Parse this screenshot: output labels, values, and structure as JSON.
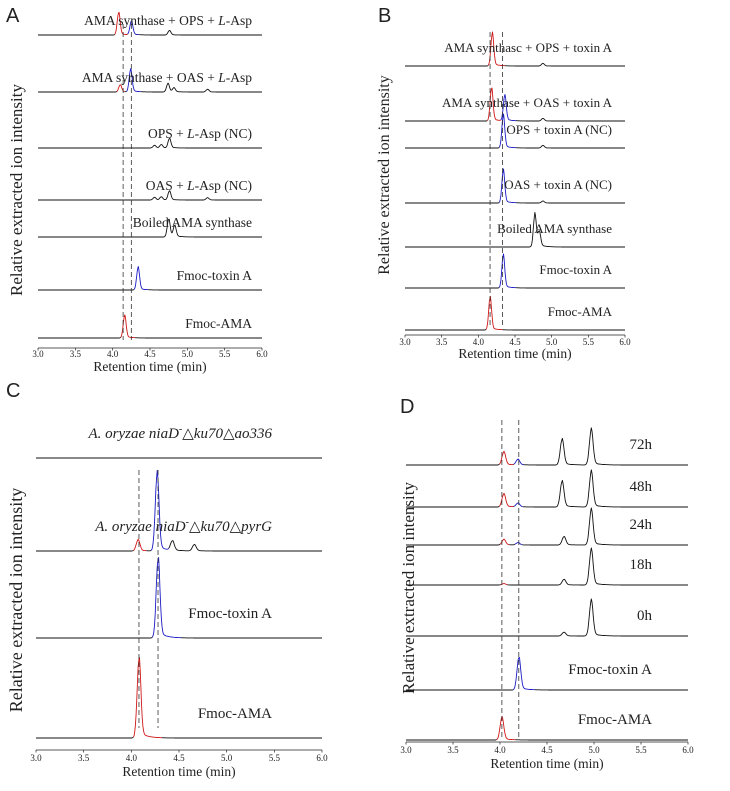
{
  "chart_data": [
    {
      "type": "line",
      "panel": "A",
      "xlabel": "Retention time (min)",
      "ylabel": "Relative extracted ion intensity",
      "xlim": [
        3.0,
        6.0
      ],
      "xticks": [
        "3.0",
        "3.5",
        "4.0",
        "4.5",
        "5.0",
        "5.5",
        "6.0"
      ],
      "colors": {
        "AMA": "#d01818",
        "toxin": "#1c1cc4",
        "other": "#111111"
      },
      "reference_lines": [
        4.14,
        4.25
      ],
      "series": [
        {
          "name": "AMA synthase + OPS + L-Asp",
          "peaks": [
            {
              "x": 4.08,
              "h": 1.0,
              "c": "AMA"
            },
            {
              "x": 4.25,
              "h": 0.62,
              "c": "toxin"
            },
            {
              "x": 4.76,
              "h": 0.2,
              "c": "other"
            }
          ]
        },
        {
          "name": "AMA synthase + OAS + L-Asp",
          "peaks": [
            {
              "x": 4.1,
              "h": 0.32,
              "c": "AMA"
            },
            {
              "x": 4.24,
              "h": 1.0,
              "c": "toxin"
            },
            {
              "x": 4.74,
              "h": 0.38,
              "c": "other"
            },
            {
              "x": 4.82,
              "h": 0.18,
              "c": "other"
            },
            {
              "x": 5.27,
              "h": 0.12,
              "c": "other"
            }
          ]
        },
        {
          "name": "OPS + L-Asp (NC)",
          "peaks": [
            {
              "x": 4.56,
              "h": 0.12,
              "c": "other"
            },
            {
              "x": 4.65,
              "h": 0.15,
              "c": "other"
            },
            {
              "x": 4.76,
              "h": 0.42,
              "c": "other"
            }
          ]
        },
        {
          "name": "OAS + L-Asp (NC)",
          "peaks": [
            {
              "x": 4.56,
              "h": 0.12,
              "c": "other"
            },
            {
              "x": 4.65,
              "h": 0.14,
              "c": "other"
            },
            {
              "x": 4.76,
              "h": 0.4,
              "c": "other"
            },
            {
              "x": 5.27,
              "h": 0.1,
              "c": "other"
            }
          ]
        },
        {
          "name": "Boiled AMA synthase",
          "peaks": [
            {
              "x": 4.75,
              "h": 0.8,
              "c": "other"
            },
            {
              "x": 4.83,
              "h": 0.5,
              "c": "other"
            }
          ]
        },
        {
          "name": "Fmoc-toxin A",
          "peaks": [
            {
              "x": 4.34,
              "h": 1.0,
              "c": "toxin"
            }
          ]
        },
        {
          "name": "Fmoc-AMA",
          "peaks": [
            {
              "x": 4.16,
              "h": 1.0,
              "c": "AMA"
            }
          ]
        }
      ]
    },
    {
      "type": "line",
      "panel": "B",
      "xlabel": "Retention time (min)",
      "ylabel": "Relative extracted ion intensity",
      "xlim": [
        3.0,
        6.0
      ],
      "xticks": [
        "3.0",
        "3.5",
        "4.0",
        "4.5",
        "5.0",
        "5.5",
        "6.0"
      ],
      "colors": {
        "AMA": "#d01818",
        "toxin": "#1c1cc4",
        "other": "#111111"
      },
      "reference_lines": [
        4.16,
        4.33
      ],
      "series": [
        {
          "name": "AMA synthasc + OPS + toxin A",
          "peaks": [
            {
              "x": 4.19,
              "h": 1.0,
              "c": "AMA"
            },
            {
              "x": 4.88,
              "h": 0.08,
              "c": "other"
            }
          ]
        },
        {
          "name": "AMA synthase + OAS + toxin A",
          "peaks": [
            {
              "x": 4.18,
              "h": 1.0,
              "c": "AMA"
            },
            {
              "x": 4.36,
              "h": 0.78,
              "c": "toxin"
            },
            {
              "x": 4.88,
              "h": 0.08,
              "c": "other"
            }
          ]
        },
        {
          "name": "OPS + toxin A (NC)",
          "peaks": [
            {
              "x": 4.34,
              "h": 1.0,
              "c": "toxin"
            },
            {
              "x": 4.88,
              "h": 0.08,
              "c": "other"
            }
          ]
        },
        {
          "name": "OAS + toxin A (NC)",
          "peaks": [
            {
              "x": 4.34,
              "h": 1.0,
              "c": "toxin"
            },
            {
              "x": 4.88,
              "h": 0.06,
              "c": "other"
            }
          ]
        },
        {
          "name": "Boiled AMA synthase",
          "peaks": [
            {
              "x": 4.77,
              "h": 1.0,
              "c": "other"
            },
            {
              "x": 4.83,
              "h": 0.45,
              "c": "other"
            }
          ]
        },
        {
          "name": "Fmoc-toxin A",
          "peaks": [
            {
              "x": 4.34,
              "h": 1.0,
              "c": "toxin"
            }
          ]
        },
        {
          "name": "Fmoc-AMA",
          "peaks": [
            {
              "x": 4.16,
              "h": 1.0,
              "c": "AMA"
            }
          ]
        }
      ]
    },
    {
      "type": "line",
      "panel": "C",
      "xlabel": "Retention time (min)",
      "ylabel": "Relative extracted ion intensity",
      "xlim": [
        3.0,
        6.0
      ],
      "xticks": [
        "3.0",
        "3.5",
        "4.0",
        "4.5",
        "5.0",
        "5.5",
        "6.0"
      ],
      "colors": {
        "AMA": "#d01818",
        "toxin": "#1c1cc4",
        "other": "#111111"
      },
      "reference_lines": [
        4.08,
        4.28
      ],
      "series": [
        {
          "name": "A. oryzae niaD- △ku70△ao336",
          "label_main": "A. oryzae niaD",
          "label_sup": "-",
          "label_rest": "△ku70△ao336",
          "peaks": []
        },
        {
          "name": "A. oryzae niaD- △ku70△pyrG",
          "label_main": "A. oryzae niaD",
          "label_sup": "-",
          "label_rest": "△ku70△pyrG",
          "peaks": [
            {
              "x": 4.07,
              "h": 0.14,
              "c": "AMA"
            },
            {
              "x": 4.27,
              "h": 0.96,
              "c": "toxin"
            },
            {
              "x": 4.43,
              "h": 0.12,
              "c": "other"
            },
            {
              "x": 4.66,
              "h": 0.08,
              "c": "other"
            }
          ]
        },
        {
          "name": "Fmoc-toxin A",
          "peaks": [
            {
              "x": 4.28,
              "h": 1.0,
              "c": "toxin"
            }
          ]
        },
        {
          "name": "Fmoc-AMA",
          "peaks": [
            {
              "x": 4.08,
              "h": 1.0,
              "c": "AMA"
            }
          ]
        }
      ]
    },
    {
      "type": "line",
      "panel": "D",
      "xlabel": "Retention time (min)",
      "ylabel": "Relative extracted ion intensity",
      "xlim": [
        3.0,
        6.0
      ],
      "xticks": [
        "3.0",
        "3.5",
        "4.0",
        "4.5",
        "5.0",
        "5.5",
        "6.0"
      ],
      "colors": {
        "AMA": "#d01818",
        "toxin": "#1c1cc4",
        "other": "#111111"
      },
      "reference_lines": [
        4.02,
        4.2
      ],
      "series": [
        {
          "name": "72h",
          "peaks": [
            {
              "x": 4.04,
              "h": 0.28,
              "c": "AMA"
            },
            {
              "x": 4.19,
              "h": 0.12,
              "c": "toxin"
            },
            {
              "x": 4.66,
              "h": 0.55,
              "c": "other"
            },
            {
              "x": 4.97,
              "h": 0.75,
              "c": "other"
            }
          ]
        },
        {
          "name": "48h",
          "peaks": [
            {
              "x": 4.04,
              "h": 0.28,
              "c": "AMA"
            },
            {
              "x": 4.19,
              "h": 0.08,
              "c": "toxin"
            },
            {
              "x": 4.66,
              "h": 0.55,
              "c": "other"
            },
            {
              "x": 4.97,
              "h": 0.75,
              "c": "other"
            }
          ]
        },
        {
          "name": "24h",
          "peaks": [
            {
              "x": 4.04,
              "h": 0.12,
              "c": "AMA"
            },
            {
              "x": 4.19,
              "h": 0.05,
              "c": "toxin"
            },
            {
              "x": 4.68,
              "h": 0.18,
              "c": "other"
            },
            {
              "x": 4.97,
              "h": 0.75,
              "c": "other"
            }
          ]
        },
        {
          "name": "18h",
          "peaks": [
            {
              "x": 4.04,
              "h": 0.03,
              "c": "AMA"
            },
            {
              "x": 4.68,
              "h": 0.12,
              "c": "other"
            },
            {
              "x": 4.97,
              "h": 0.75,
              "c": "other"
            }
          ]
        },
        {
          "name": "0h",
          "peaks": [
            {
              "x": 4.68,
              "h": 0.08,
              "c": "other"
            },
            {
              "x": 4.97,
              "h": 0.75,
              "c": "other"
            }
          ]
        },
        {
          "name": "Fmoc-toxin A",
          "peaks": [
            {
              "x": 4.2,
              "h": 0.7,
              "c": "toxin"
            }
          ]
        },
        {
          "name": "Fmoc-AMA",
          "peaks": [
            {
              "x": 4.02,
              "h": 0.48,
              "c": "AMA"
            }
          ]
        }
      ]
    }
  ]
}
